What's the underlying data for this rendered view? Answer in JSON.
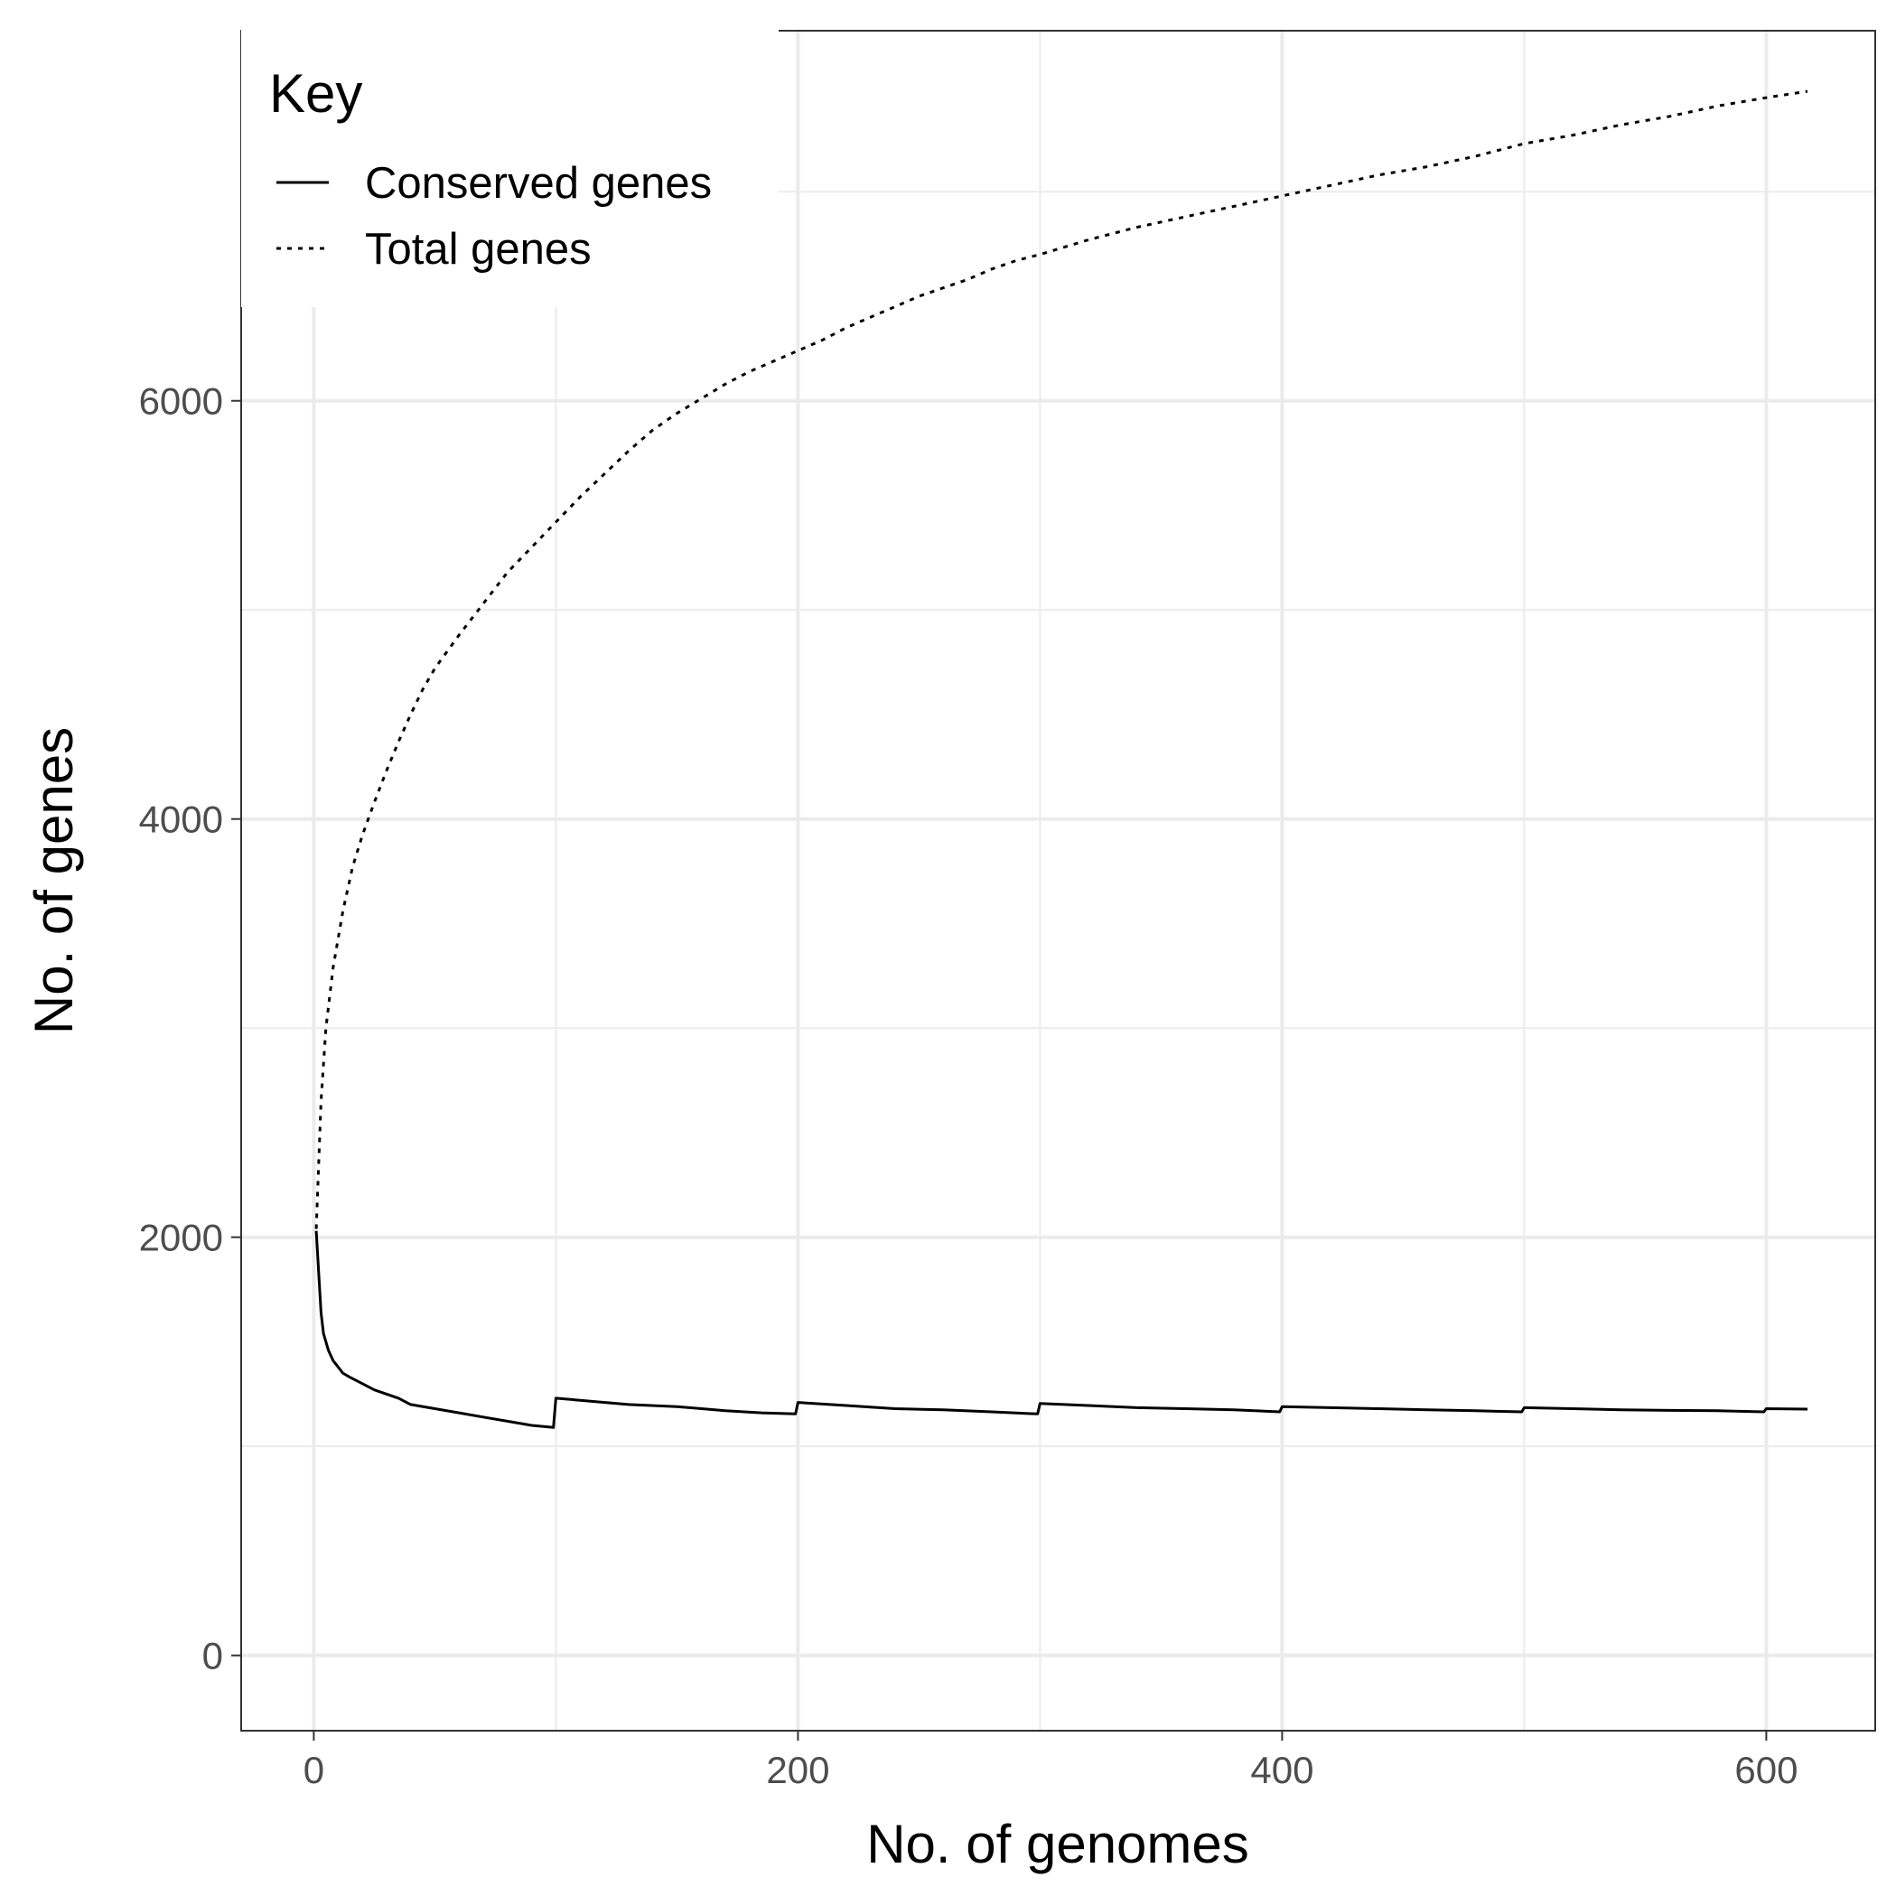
{
  "chart_data": {
    "type": "line",
    "xlabel": "No. of genomes",
    "ylabel": "No. of genes",
    "xlim": [
      -30,
      645
    ],
    "ylim": [
      -360,
      7770
    ],
    "x_ticks": [
      0,
      200,
      400,
      600
    ],
    "y_ticks": [
      0,
      2000,
      4000,
      6000
    ],
    "x_tick_labels": [
      "0",
      "200",
      "400",
      "600"
    ],
    "y_tick_labels": [
      "0",
      "2000",
      "4000",
      "6000"
    ],
    "grid": true,
    "legend": {
      "title": "Key",
      "placement": "top-left"
    },
    "series": [
      {
        "name": "Total genes",
        "line_style": "dotted",
        "color": "#000000",
        "x": [
          1,
          3,
          5,
          8,
          12,
          16,
          20,
          25,
          30,
          35,
          40,
          45,
          50,
          60,
          70,
          80,
          90,
          100,
          110,
          120,
          130,
          140,
          150,
          160,
          170,
          180,
          190,
          200,
          210,
          220,
          230,
          240,
          250,
          260,
          270,
          280,
          290,
          300,
          320,
          340,
          360,
          380,
          400,
          420,
          440,
          460,
          480,
          500,
          520,
          540,
          560,
          580,
          600,
          617
        ],
        "values": [
          2040,
          2650,
          3000,
          3290,
          3560,
          3770,
          3920,
          4080,
          4230,
          4370,
          4500,
          4620,
          4720,
          4880,
          5030,
          5180,
          5300,
          5420,
          5540,
          5650,
          5760,
          5860,
          5940,
          6010,
          6080,
          6140,
          6190,
          6240,
          6290,
          6350,
          6400,
          6450,
          6500,
          6540,
          6580,
          6630,
          6670,
          6700,
          6770,
          6830,
          6880,
          6930,
          6980,
          7030,
          7080,
          7120,
          7170,
          7230,
          7270,
          7320,
          7360,
          7410,
          7450,
          7480
        ]
      },
      {
        "name": "Conserved genes",
        "line_style": "solid",
        "color": "#000000",
        "x": [
          1,
          2,
          3,
          4,
          6,
          8,
          10,
          12,
          15,
          20,
          25,
          30,
          35,
          40,
          50,
          60,
          70,
          80,
          90,
          99,
          100,
          110,
          130,
          150,
          170,
          185,
          199,
          200,
          220,
          240,
          260,
          280,
          299,
          300,
          320,
          340,
          360,
          380,
          399,
          400,
          420,
          440,
          460,
          480,
          499,
          500,
          520,
          540,
          560,
          580,
          599,
          600,
          617
        ],
        "values": [
          2030,
          1830,
          1640,
          1540,
          1460,
          1410,
          1380,
          1350,
          1330,
          1300,
          1270,
          1250,
          1230,
          1200,
          1180,
          1160,
          1140,
          1120,
          1100,
          1090,
          1230,
          1220,
          1200,
          1190,
          1170,
          1160,
          1155,
          1210,
          1195,
          1180,
          1175,
          1165,
          1155,
          1205,
          1195,
          1185,
          1180,
          1175,
          1165,
          1190,
          1185,
          1180,
          1175,
          1170,
          1165,
          1185,
          1180,
          1175,
          1172,
          1170,
          1165,
          1180,
          1178
        ]
      }
    ]
  }
}
